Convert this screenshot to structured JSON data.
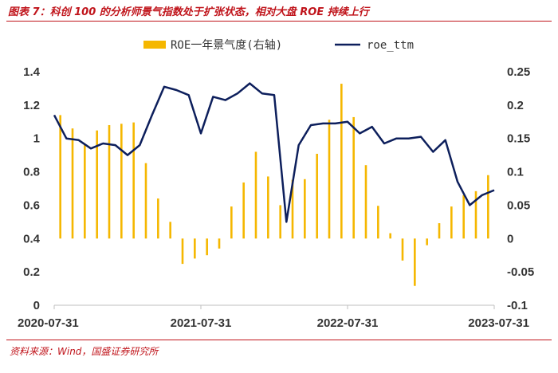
{
  "title": "图表 7：科创 100 的分析师景气指数处于扩张状态，相对大盘 ROE 持续上行",
  "source": "资料来源：Wind，国盛证券研究所",
  "colors": {
    "bars": "#f5b700",
    "line": "#0d1f5c",
    "accent": "#c0141b"
  },
  "chart_data": {
    "type": "bar+line",
    "legend": [
      "ROE一年景气度(右轴)",
      "roe_ttm"
    ],
    "legend_position": "top",
    "left_axis": {
      "min": 0,
      "max": 1.4,
      "ticks": [
        "0",
        "0.2",
        "0.4",
        "0.6",
        "0.8",
        "1",
        "1.2",
        "1.4"
      ]
    },
    "right_axis": {
      "min": -0.1,
      "max": 0.25,
      "ticks": [
        "-0.1",
        "-0.05",
        "0",
        "0.05",
        "0.1",
        "0.15",
        "0.2",
        "0.25"
      ]
    },
    "x_tick_labels": [
      "2020-07-31",
      "2021-07-31",
      "2022-07-31",
      "2023-07-31"
    ],
    "x_start": "2020-07-31",
    "x_end": "2023-07-31",
    "grid": false,
    "series": [
      {
        "name": "ROE一年景气度(右轴)",
        "type": "bar",
        "axis": "right",
        "values": [
          0.185,
          0.165,
          0.14,
          0.162,
          0.17,
          0.172,
          0.174,
          0.113,
          0.06,
          0.025,
          -0.038,
          -0.03,
          -0.025,
          -0.015,
          0.048,
          0.084,
          0.13,
          0.093,
          0.05,
          0.088,
          0.089,
          0.127,
          0.178,
          0.232,
          0.182,
          0.11,
          0.049,
          0.008,
          -0.033,
          -0.071,
          -0.01,
          0.023,
          0.048,
          0.065,
          0.071,
          0.095
        ]
      },
      {
        "name": "roe_ttm",
        "type": "line",
        "axis": "left",
        "values": [
          1.14,
          1.0,
          0.99,
          0.94,
          0.97,
          0.96,
          0.9,
          0.96,
          1.14,
          1.31,
          1.29,
          1.26,
          1.03,
          1.25,
          1.23,
          1.27,
          1.33,
          1.27,
          1.26,
          0.5,
          0.96,
          1.08,
          1.09,
          1.09,
          1.1,
          1.03,
          1.07,
          0.97,
          1.0,
          1.0,
          1.01,
          0.92,
          0.99,
          0.74,
          0.6,
          0.66,
          0.69
        ]
      }
    ]
  }
}
